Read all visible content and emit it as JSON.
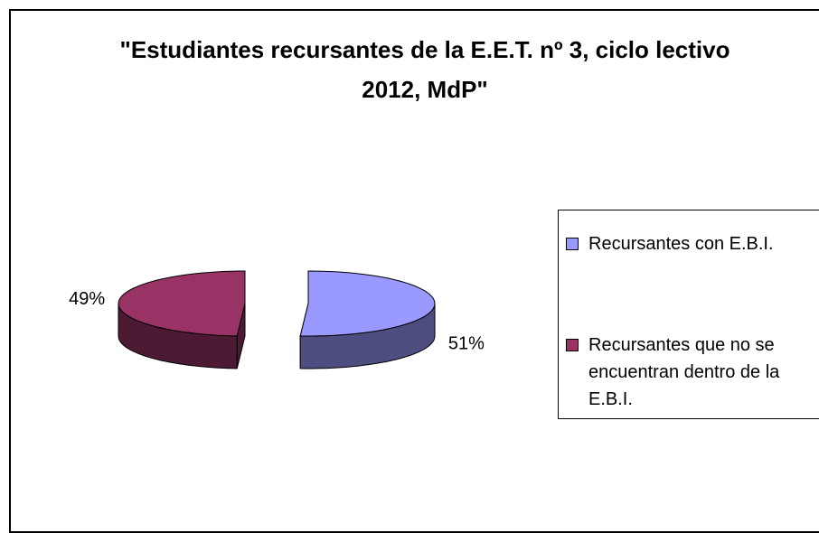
{
  "chart_data": {
    "type": "pie",
    "title": "\"Estudiantes recursantes de la E.E.T. nº 3, ciclo lectivo 2012, MdP\"",
    "categories": [
      "Recursantes con E.B.I.",
      "Recursantes que no se encuentran dentro de la E.B.I."
    ],
    "values": [
      51,
      49
    ],
    "value_labels": [
      "51%",
      "49%"
    ],
    "colors": [
      "#9999ff",
      "#993366"
    ],
    "legend": "right"
  }
}
